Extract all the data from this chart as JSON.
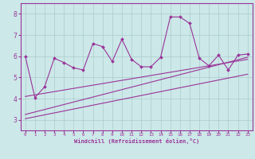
{
  "xlabel": "Windchill (Refroidissement éolien,°C)",
  "bg_color": "#cce8e8",
  "grid_color": "#aacccc",
  "line_color": "#993399",
  "xlim": [
    -0.5,
    23.5
  ],
  "ylim": [
    2.5,
    8.5
  ],
  "yticks": [
    3,
    4,
    5,
    6,
    7,
    8
  ],
  "xticks": [
    0,
    1,
    2,
    3,
    4,
    5,
    6,
    7,
    8,
    9,
    10,
    11,
    12,
    13,
    14,
    15,
    16,
    17,
    18,
    19,
    20,
    21,
    22,
    23
  ],
  "main_x": [
    0,
    1,
    2,
    3,
    4,
    5,
    6,
    7,
    8,
    9,
    10,
    11,
    12,
    13,
    14,
    15,
    16,
    17,
    18,
    19,
    20,
    21,
    22,
    23
  ],
  "main_y": [
    6.0,
    4.05,
    4.55,
    5.9,
    5.7,
    5.45,
    5.35,
    6.6,
    6.45,
    5.75,
    6.8,
    5.85,
    5.5,
    5.5,
    5.95,
    7.85,
    7.85,
    7.55,
    5.9,
    5.55,
    6.05,
    5.35,
    6.05,
    6.1
  ],
  "line1_x": [
    0,
    23
  ],
  "line1_y": [
    4.1,
    5.85
  ],
  "line2_x": [
    0,
    23
  ],
  "line2_y": [
    3.05,
    5.15
  ],
  "line3_x": [
    0,
    23
  ],
  "line3_y": [
    3.25,
    5.95
  ]
}
